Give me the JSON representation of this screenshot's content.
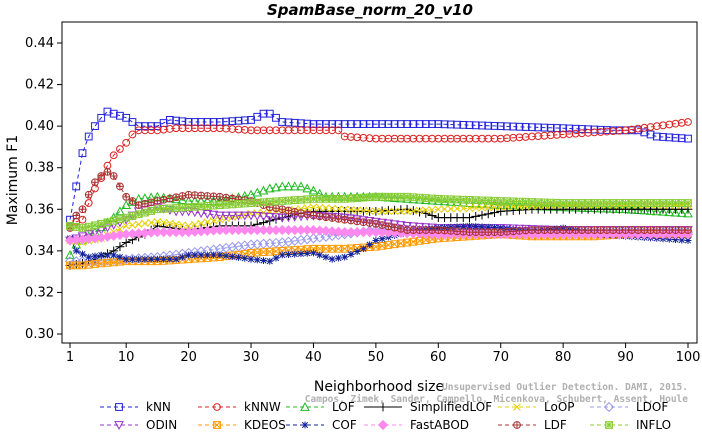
{
  "chart_data": {
    "type": "line",
    "title": "SpamBase_norm_20_v10",
    "xlabel": "Neighborhood size",
    "ylabel": "Maximum F1",
    "xlim": [
      1,
      100
    ],
    "ylim": [
      0.3,
      0.45
    ],
    "x_ticks": [
      1,
      10,
      20,
      30,
      40,
      50,
      60,
      70,
      80,
      90,
      100
    ],
    "y_ticks": [
      0.3,
      0.32,
      0.34,
      0.36,
      0.38,
      0.4,
      0.42,
      0.44
    ],
    "y_tick_labels": [
      "0.30",
      "0.32",
      "0.34",
      "0.36",
      "0.38",
      "0.40",
      "0.42",
      "0.44"
    ],
    "grid": false,
    "legend_position": "bottom",
    "watermark": "Campos, Zimek, Sander, Campello, Micenkova, Schubert, Assent, Houle",
    "watermark_line1": "Unsupervised Outlier Detection. DAMI, 2015.",
    "series": [
      {
        "name": "kNN",
        "color": "#2222dd",
        "marker": "square",
        "dash": "4,3",
        "points": [
          [
            1,
            0.355
          ],
          [
            2,
            0.371
          ],
          [
            3,
            0.387
          ],
          [
            4,
            0.395
          ],
          [
            5,
            0.4
          ],
          [
            6,
            0.404
          ],
          [
            7,
            0.407
          ],
          [
            8,
            0.406
          ],
          [
            10,
            0.404
          ],
          [
            12,
            0.4
          ],
          [
            15,
            0.4
          ],
          [
            17,
            0.403
          ],
          [
            20,
            0.402
          ],
          [
            25,
            0.402
          ],
          [
            30,
            0.403
          ],
          [
            32,
            0.406
          ],
          [
            33,
            0.406
          ],
          [
            35,
            0.402
          ],
          [
            40,
            0.401
          ],
          [
            50,
            0.401
          ],
          [
            60,
            0.401
          ],
          [
            70,
            0.4
          ],
          [
            80,
            0.399
          ],
          [
            88,
            0.398
          ],
          [
            92,
            0.398
          ],
          [
            95,
            0.395
          ],
          [
            100,
            0.394
          ]
        ]
      },
      {
        "name": "kNNW",
        "color": "#dd2222",
        "marker": "circle",
        "dash": "4,3",
        "points": [
          [
            1,
            0.352
          ],
          [
            2,
            0.354
          ],
          [
            3,
            0.355
          ],
          [
            4,
            0.363
          ],
          [
            5,
            0.37
          ],
          [
            6,
            0.375
          ],
          [
            7,
            0.381
          ],
          [
            8,
            0.386
          ],
          [
            9,
            0.389
          ],
          [
            10,
            0.392
          ],
          [
            11,
            0.396
          ],
          [
            12,
            0.398
          ],
          [
            15,
            0.398
          ],
          [
            18,
            0.399
          ],
          [
            20,
            0.399
          ],
          [
            25,
            0.399
          ],
          [
            30,
            0.398
          ],
          [
            35,
            0.398
          ],
          [
            40,
            0.398
          ],
          [
            44,
            0.398
          ],
          [
            45,
            0.395
          ],
          [
            50,
            0.394
          ],
          [
            60,
            0.394
          ],
          [
            70,
            0.394
          ],
          [
            75,
            0.395
          ],
          [
            80,
            0.396
          ],
          [
            90,
            0.398
          ],
          [
            95,
            0.4
          ],
          [
            100,
            0.402
          ]
        ]
      },
      {
        "name": "LOF",
        "color": "#22bb22",
        "marker": "triangle-up",
        "dash": "4,3",
        "points": [
          [
            1,
            0.338
          ],
          [
            2,
            0.343
          ],
          [
            5,
            0.349
          ],
          [
            8,
            0.356
          ],
          [
            10,
            0.362
          ],
          [
            12,
            0.365
          ],
          [
            15,
            0.366
          ],
          [
            20,
            0.364
          ],
          [
            25,
            0.364
          ],
          [
            30,
            0.367
          ],
          [
            33,
            0.37
          ],
          [
            35,
            0.371
          ],
          [
            38,
            0.371
          ],
          [
            40,
            0.369
          ],
          [
            42,
            0.366
          ],
          [
            50,
            0.366
          ],
          [
            60,
            0.364
          ],
          [
            70,
            0.362
          ],
          [
            80,
            0.361
          ],
          [
            90,
            0.36
          ],
          [
            100,
            0.358
          ]
        ]
      },
      {
        "name": "SimplifiedLOF",
        "color": "#000000",
        "marker": "plus",
        "dash": "",
        "points": [
          [
            1,
            0.333
          ],
          [
            3,
            0.334
          ],
          [
            5,
            0.336
          ],
          [
            8,
            0.34
          ],
          [
            10,
            0.344
          ],
          [
            13,
            0.348
          ],
          [
            15,
            0.352
          ],
          [
            20,
            0.35
          ],
          [
            25,
            0.352
          ],
          [
            30,
            0.352
          ],
          [
            35,
            0.356
          ],
          [
            38,
            0.358
          ],
          [
            40,
            0.359
          ],
          [
            45,
            0.359
          ],
          [
            50,
            0.359
          ],
          [
            55,
            0.36
          ],
          [
            58,
            0.358
          ],
          [
            60,
            0.356
          ],
          [
            65,
            0.356
          ],
          [
            70,
            0.359
          ],
          [
            75,
            0.36
          ],
          [
            80,
            0.36
          ],
          [
            85,
            0.36
          ],
          [
            90,
            0.36
          ],
          [
            95,
            0.36
          ],
          [
            100,
            0.36
          ]
        ]
      },
      {
        "name": "LoOP",
        "color": "#e6d000",
        "marker": "x",
        "dash": "4,3",
        "points": [
          [
            1,
            0.345
          ],
          [
            3,
            0.344
          ],
          [
            6,
            0.346
          ],
          [
            10,
            0.352
          ],
          [
            15,
            0.354
          ],
          [
            20,
            0.352
          ],
          [
            25,
            0.355
          ],
          [
            30,
            0.358
          ],
          [
            35,
            0.359
          ],
          [
            40,
            0.361
          ],
          [
            45,
            0.36
          ],
          [
            50,
            0.359
          ],
          [
            55,
            0.359
          ],
          [
            60,
            0.36
          ],
          [
            70,
            0.361
          ],
          [
            80,
            0.362
          ],
          [
            90,
            0.362
          ],
          [
            100,
            0.362
          ]
        ]
      },
      {
        "name": "LDOF",
        "color": "#9999ee",
        "marker": "diamond",
        "dash": "4,3",
        "points": [
          [
            1,
            0.335
          ],
          [
            5,
            0.335
          ],
          [
            10,
            0.336
          ],
          [
            15,
            0.337
          ],
          [
            20,
            0.339
          ],
          [
            25,
            0.341
          ],
          [
            30,
            0.343
          ],
          [
            35,
            0.344
          ],
          [
            40,
            0.346
          ],
          [
            45,
            0.348
          ],
          [
            50,
            0.35
          ],
          [
            55,
            0.35
          ],
          [
            60,
            0.35
          ],
          [
            70,
            0.35
          ],
          [
            80,
            0.349
          ],
          [
            90,
            0.349
          ],
          [
            100,
            0.349
          ]
        ]
      },
      {
        "name": "ODIN",
        "color": "#9933cc",
        "marker": "triangle-down",
        "dash": "4,3",
        "points": [
          [
            1,
            0.345
          ],
          [
            3,
            0.347
          ],
          [
            6,
            0.35
          ],
          [
            10,
            0.355
          ],
          [
            12,
            0.359
          ],
          [
            15,
            0.361
          ],
          [
            18,
            0.359
          ],
          [
            20,
            0.359
          ],
          [
            25,
            0.357
          ],
          [
            30,
            0.357
          ],
          [
            35,
            0.356
          ],
          [
            40,
            0.357
          ],
          [
            45,
            0.356
          ],
          [
            50,
            0.354
          ],
          [
            55,
            0.352
          ],
          [
            60,
            0.351
          ],
          [
            70,
            0.351
          ],
          [
            80,
            0.35
          ],
          [
            90,
            0.35
          ],
          [
            100,
            0.35
          ]
        ]
      },
      {
        "name": "KDEOS",
        "color": "#ff9900",
        "marker": "square-x",
        "dash": "4,3",
        "points": [
          [
            1,
            0.333
          ],
          [
            3,
            0.333
          ],
          [
            6,
            0.334
          ],
          [
            10,
            0.335
          ],
          [
            15,
            0.335
          ],
          [
            20,
            0.336
          ],
          [
            25,
            0.337
          ],
          [
            30,
            0.339
          ],
          [
            35,
            0.34
          ],
          [
            40,
            0.341
          ],
          [
            45,
            0.341
          ],
          [
            50,
            0.342
          ],
          [
            55,
            0.344
          ],
          [
            60,
            0.346
          ],
          [
            65,
            0.347
          ],
          [
            70,
            0.348
          ],
          [
            75,
            0.347
          ],
          [
            80,
            0.347
          ],
          [
            85,
            0.347
          ],
          [
            90,
            0.348
          ],
          [
            95,
            0.348
          ],
          [
            100,
            0.348
          ]
        ]
      },
      {
        "name": "COF",
        "color": "#112299",
        "marker": "asterisk",
        "dash": "4,3",
        "points": [
          [
            1,
            0.346
          ],
          [
            2,
            0.34
          ],
          [
            4,
            0.337
          ],
          [
            6,
            0.338
          ],
          [
            8,
            0.338
          ],
          [
            10,
            0.336
          ],
          [
            15,
            0.336
          ],
          [
            18,
            0.336
          ],
          [
            20,
            0.338
          ],
          [
            25,
            0.338
          ],
          [
            30,
            0.336
          ],
          [
            33,
            0.335
          ],
          [
            35,
            0.338
          ],
          [
            40,
            0.339
          ],
          [
            43,
            0.336
          ],
          [
            45,
            0.337
          ],
          [
            48,
            0.341
          ],
          [
            50,
            0.345
          ],
          [
            55,
            0.349
          ],
          [
            60,
            0.351
          ],
          [
            65,
            0.352
          ],
          [
            70,
            0.351
          ],
          [
            75,
            0.349
          ],
          [
            80,
            0.351
          ],
          [
            85,
            0.348
          ],
          [
            90,
            0.347
          ],
          [
            95,
            0.346
          ],
          [
            100,
            0.345
          ]
        ]
      },
      {
        "name": "FastABOD",
        "color": "#ff88ee",
        "marker": "diamond-filled",
        "dash": "4,3",
        "points": [
          [
            1,
            0.345
          ],
          [
            5,
            0.346
          ],
          [
            10,
            0.348
          ],
          [
            15,
            0.349
          ],
          [
            20,
            0.349
          ],
          [
            25,
            0.35
          ],
          [
            30,
            0.35
          ],
          [
            35,
            0.35
          ],
          [
            40,
            0.35
          ],
          [
            45,
            0.349
          ],
          [
            50,
            0.349
          ],
          [
            60,
            0.348
          ],
          [
            70,
            0.348
          ],
          [
            80,
            0.348
          ],
          [
            90,
            0.348
          ],
          [
            100,
            0.348
          ]
        ]
      },
      {
        "name": "LDF",
        "color": "#aa3333",
        "marker": "circle-plus",
        "dash": "4,3",
        "points": [
          [
            1,
            0.351
          ],
          [
            2,
            0.357
          ],
          [
            3,
            0.36
          ],
          [
            4,
            0.367
          ],
          [
            5,
            0.373
          ],
          [
            6,
            0.376
          ],
          [
            7,
            0.378
          ],
          [
            8,
            0.376
          ],
          [
            9,
            0.371
          ],
          [
            10,
            0.366
          ],
          [
            12,
            0.362
          ],
          [
            15,
            0.364
          ],
          [
            20,
            0.367
          ],
          [
            25,
            0.366
          ],
          [
            30,
            0.364
          ],
          [
            33,
            0.361
          ],
          [
            35,
            0.36
          ],
          [
            40,
            0.357
          ],
          [
            45,
            0.355
          ],
          [
            50,
            0.353
          ],
          [
            55,
            0.35
          ],
          [
            60,
            0.35
          ],
          [
            65,
            0.349
          ],
          [
            70,
            0.349
          ],
          [
            75,
            0.35
          ],
          [
            80,
            0.35
          ],
          [
            90,
            0.35
          ],
          [
            100,
            0.35
          ]
        ]
      },
      {
        "name": "INFLO",
        "color": "#88cc33",
        "marker": "square-cross",
        "dash": "4,3",
        "points": [
          [
            1,
            0.352
          ],
          [
            3,
            0.351
          ],
          [
            6,
            0.353
          ],
          [
            10,
            0.356
          ],
          [
            15,
            0.36
          ],
          [
            20,
            0.361
          ],
          [
            25,
            0.362
          ],
          [
            30,
            0.363
          ],
          [
            35,
            0.364
          ],
          [
            40,
            0.365
          ],
          [
            45,
            0.365
          ],
          [
            50,
            0.366
          ],
          [
            55,
            0.366
          ],
          [
            60,
            0.365
          ],
          [
            70,
            0.364
          ],
          [
            80,
            0.363
          ],
          [
            90,
            0.363
          ],
          [
            100,
            0.363
          ]
        ]
      }
    ]
  }
}
